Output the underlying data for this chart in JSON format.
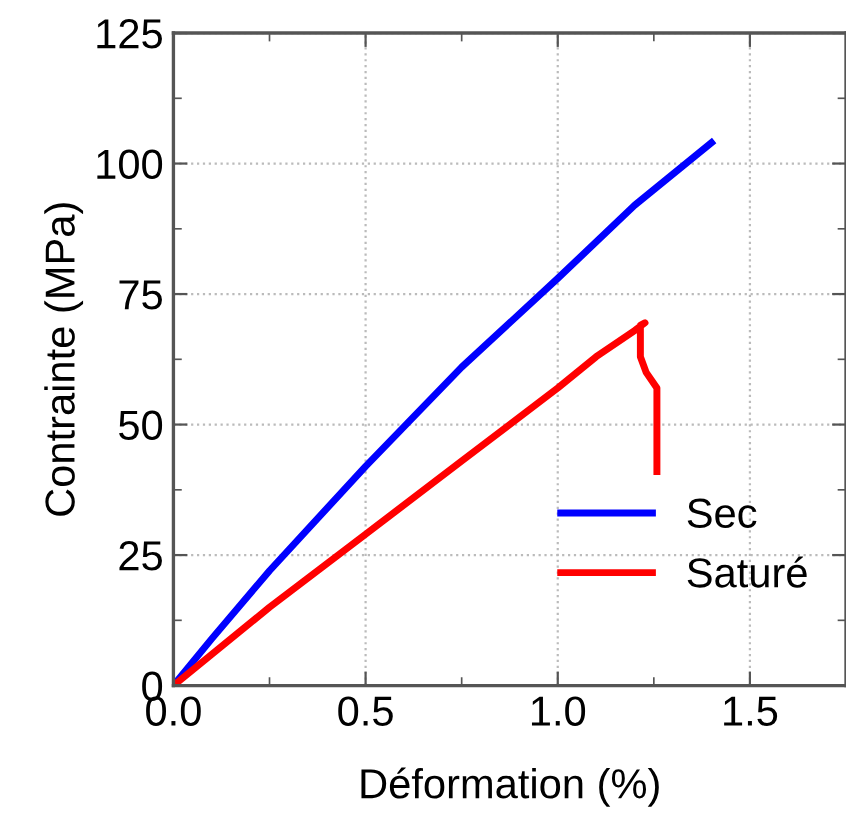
{
  "chart_data": {
    "type": "line",
    "xlabel": "Déformation (%)",
    "ylabel": "Contrainte (MPa)",
    "xlim": [
      0,
      1.75
    ],
    "ylim": [
      0,
      125
    ],
    "xticks": [
      {
        "value": 0,
        "label": "0.0"
      },
      0.5,
      {
        "value": 1,
        "label": "1.0"
      },
      1.5
    ],
    "yticks": [
      0,
      25,
      50,
      75,
      100,
      125
    ],
    "grid": true,
    "legend": "bottom right",
    "marker": "none",
    "line_style": "solid",
    "series": [
      {
        "name": "Sec",
        "color": "#0000ff",
        "x": [
          0,
          0.1,
          0.25,
          0.5,
          0.75,
          1.0,
          1.2,
          1.4
        ],
        "values": [
          0,
          9,
          22,
          42,
          61,
          78,
          92,
          104
        ]
      },
      {
        "name": "Saturé",
        "color": "#ff0000",
        "x": [
          0,
          0.25,
          0.5,
          0.75,
          1.0,
          1.1,
          1.2,
          1.227,
          1.215,
          1.215,
          1.23,
          1.258,
          1.258
        ],
        "values": [
          0,
          15,
          29,
          43,
          57,
          63,
          68,
          69.5,
          69,
          63,
          60,
          57,
          41
        ]
      }
    ]
  }
}
